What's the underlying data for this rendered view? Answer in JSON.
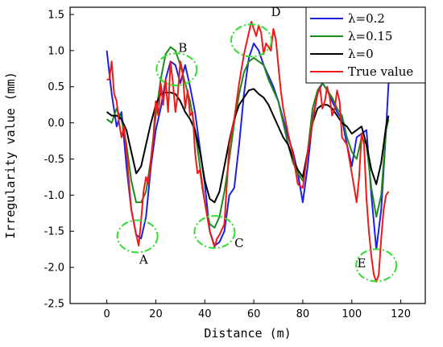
{
  "chart_data": {
    "type": "line",
    "xlabel": "Distance (m)",
    "ylabel": "Irregularity value (mm)",
    "xlim": [
      -15,
      130
    ],
    "ylim": [
      -2.5,
      1.6
    ],
    "xticks": [
      "0",
      "20",
      "40",
      "60",
      "80",
      "100",
      "120"
    ],
    "yticks": [
      "-2.5",
      "-2.0",
      "-1.5",
      "-1.0",
      "-0.5",
      "0.0",
      "0.5",
      "1.0",
      "1.5"
    ],
    "legend_position": "top-right",
    "series": [
      {
        "name": "λ=0.2",
        "color": "#1f1fe0",
        "points": [
          [
            0,
            1.0
          ],
          [
            2,
            0.4
          ],
          [
            4,
            -0.05
          ],
          [
            6,
            0.15
          ],
          [
            8,
            -0.6
          ],
          [
            10,
            -1.2
          ],
          [
            12,
            -1.55
          ],
          [
            14,
            -1.6
          ],
          [
            16,
            -1.3
          ],
          [
            18,
            -0.6
          ],
          [
            20,
            -0.1
          ],
          [
            22,
            0.2
          ],
          [
            24,
            0.6
          ],
          [
            26,
            0.85
          ],
          [
            28,
            0.8
          ],
          [
            30,
            0.55
          ],
          [
            32,
            0.8
          ],
          [
            34,
            0.5
          ],
          [
            36,
            0.15
          ],
          [
            38,
            -0.35
          ],
          [
            40,
            -0.85
          ],
          [
            42,
            -1.5
          ],
          [
            44,
            -1.7
          ],
          [
            46,
            -1.65
          ],
          [
            48,
            -1.5
          ],
          [
            50,
            -1.0
          ],
          [
            52,
            -0.9
          ],
          [
            54,
            -0.3
          ],
          [
            56,
            0.4
          ],
          [
            58,
            0.9
          ],
          [
            60,
            1.1
          ],
          [
            62,
            1.0
          ],
          [
            64,
            0.8
          ],
          [
            66,
            0.65
          ],
          [
            68,
            0.5
          ],
          [
            70,
            0.3
          ],
          [
            72,
            0.05
          ],
          [
            74,
            -0.2
          ],
          [
            76,
            -0.4
          ],
          [
            78,
            -0.7
          ],
          [
            80,
            -1.1
          ],
          [
            82,
            -0.6
          ],
          [
            84,
            0.05
          ],
          [
            86,
            0.4
          ],
          [
            88,
            0.55
          ],
          [
            90,
            0.45
          ],
          [
            92,
            0.3
          ],
          [
            94,
            0.15
          ],
          [
            96,
            0.05
          ],
          [
            98,
            -0.3
          ],
          [
            100,
            -0.6
          ],
          [
            102,
            -0.2
          ],
          [
            104,
            -0.15
          ],
          [
            106,
            -0.1
          ],
          [
            108,
            -1.0
          ],
          [
            110,
            -1.75
          ],
          [
            112,
            -1.2
          ],
          [
            114,
            -0.1
          ],
          [
            115,
            0.55
          ]
        ]
      },
      {
        "name": "λ=0.15",
        "color": "#1e8a1e",
        "points": [
          [
            0,
            0.05
          ],
          [
            2,
            0.0
          ],
          [
            4,
            0.2
          ],
          [
            6,
            0.05
          ],
          [
            8,
            -0.3
          ],
          [
            10,
            -0.8
          ],
          [
            12,
            -1.1
          ],
          [
            14,
            -1.1
          ],
          [
            16,
            -0.95
          ],
          [
            18,
            -0.5
          ],
          [
            20,
            0.1
          ],
          [
            22,
            0.6
          ],
          [
            24,
            0.95
          ],
          [
            26,
            1.05
          ],
          [
            28,
            1.0
          ],
          [
            30,
            0.8
          ],
          [
            32,
            0.55
          ],
          [
            34,
            0.3
          ],
          [
            36,
            -0.1
          ],
          [
            38,
            -0.6
          ],
          [
            40,
            -1.1
          ],
          [
            42,
            -1.4
          ],
          [
            44,
            -1.45
          ],
          [
            46,
            -1.3
          ],
          [
            48,
            -0.95
          ],
          [
            50,
            -0.5
          ],
          [
            52,
            0.0
          ],
          [
            54,
            0.4
          ],
          [
            56,
            0.7
          ],
          [
            58,
            0.85
          ],
          [
            60,
            0.9
          ],
          [
            62,
            0.85
          ],
          [
            64,
            0.8
          ],
          [
            66,
            0.6
          ],
          [
            68,
            0.45
          ],
          [
            70,
            0.3
          ],
          [
            72,
            0.0
          ],
          [
            74,
            -0.3
          ],
          [
            76,
            -0.55
          ],
          [
            78,
            -0.7
          ],
          [
            80,
            -0.8
          ],
          [
            82,
            -0.4
          ],
          [
            84,
            0.2
          ],
          [
            86,
            0.45
          ],
          [
            88,
            0.55
          ],
          [
            90,
            0.45
          ],
          [
            92,
            0.35
          ],
          [
            94,
            0.2
          ],
          [
            96,
            0.1
          ],
          [
            98,
            -0.2
          ],
          [
            100,
            -0.4
          ],
          [
            102,
            -0.5
          ],
          [
            104,
            -0.2
          ],
          [
            106,
            -0.3
          ],
          [
            108,
            -0.9
          ],
          [
            110,
            -1.3
          ],
          [
            112,
            -1.0
          ],
          [
            114,
            -0.1
          ],
          [
            115,
            0.05
          ]
        ]
      },
      {
        "name": "λ=0",
        "color": "#000000",
        "points": [
          [
            0,
            0.15
          ],
          [
            2,
            0.1
          ],
          [
            4,
            0.1
          ],
          [
            6,
            0.05
          ],
          [
            8,
            -0.1
          ],
          [
            10,
            -0.4
          ],
          [
            12,
            -0.7
          ],
          [
            14,
            -0.6
          ],
          [
            16,
            -0.3
          ],
          [
            18,
            0.0
          ],
          [
            20,
            0.25
          ],
          [
            22,
            0.4
          ],
          [
            24,
            0.42
          ],
          [
            26,
            0.42
          ],
          [
            28,
            0.4
          ],
          [
            30,
            0.3
          ],
          [
            32,
            0.15
          ],
          [
            34,
            0.05
          ],
          [
            36,
            -0.1
          ],
          [
            38,
            -0.4
          ],
          [
            40,
            -0.8
          ],
          [
            42,
            -1.05
          ],
          [
            44,
            -1.1
          ],
          [
            46,
            -0.95
          ],
          [
            48,
            -0.6
          ],
          [
            50,
            -0.25
          ],
          [
            52,
            0.05
          ],
          [
            54,
            0.25
          ],
          [
            56,
            0.35
          ],
          [
            58,
            0.45
          ],
          [
            60,
            0.47
          ],
          [
            62,
            0.4
          ],
          [
            64,
            0.35
          ],
          [
            66,
            0.25
          ],
          [
            68,
            0.1
          ],
          [
            70,
            -0.05
          ],
          [
            72,
            -0.2
          ],
          [
            74,
            -0.3
          ],
          [
            76,
            -0.5
          ],
          [
            78,
            -0.65
          ],
          [
            80,
            -0.75
          ],
          [
            82,
            -0.4
          ],
          [
            84,
            0.0
          ],
          [
            86,
            0.2
          ],
          [
            88,
            0.25
          ],
          [
            90,
            0.25
          ],
          [
            92,
            0.2
          ],
          [
            94,
            0.1
          ],
          [
            96,
            0.0
          ],
          [
            98,
            -0.05
          ],
          [
            100,
            -0.15
          ],
          [
            102,
            -0.1
          ],
          [
            104,
            -0.05
          ],
          [
            106,
            -0.3
          ],
          [
            108,
            -0.65
          ],
          [
            110,
            -0.85
          ],
          [
            112,
            -0.55
          ],
          [
            114,
            -0.05
          ],
          [
            115,
            0.1
          ]
        ]
      },
      {
        "name": "True value",
        "color": "#ee1a1a",
        "points": [
          [
            0,
            0.6
          ],
          [
            1,
            0.6
          ],
          [
            2,
            0.85
          ],
          [
            3,
            0.4
          ],
          [
            4,
            0.3
          ],
          [
            5,
            0.0
          ],
          [
            6,
            -0.2
          ],
          [
            7,
            -0.05
          ],
          [
            8,
            -0.4
          ],
          [
            10,
            -1.2
          ],
          [
            12,
            -1.55
          ],
          [
            13,
            -1.7
          ],
          [
            14,
            -1.35
          ],
          [
            15,
            -0.95
          ],
          [
            16,
            -0.75
          ],
          [
            17,
            -0.85
          ],
          [
            18,
            -0.5
          ],
          [
            19,
            -0.2
          ],
          [
            20,
            0.3
          ],
          [
            21,
            0.1
          ],
          [
            22,
            0.55
          ],
          [
            23,
            0.25
          ],
          [
            24,
            0.6
          ],
          [
            25,
            0.15
          ],
          [
            26,
            0.85
          ],
          [
            27,
            0.55
          ],
          [
            28,
            0.15
          ],
          [
            29,
            0.4
          ],
          [
            30,
            0.85
          ],
          [
            31,
            0.7
          ],
          [
            32,
            0.2
          ],
          [
            33,
            0.45
          ],
          [
            34,
            0.1
          ],
          [
            35,
            0.15
          ],
          [
            36,
            -0.4
          ],
          [
            37,
            -0.7
          ],
          [
            38,
            -0.65
          ],
          [
            39,
            -0.9
          ],
          [
            40,
            -1.1
          ],
          [
            42,
            -1.5
          ],
          [
            44,
            -1.72
          ],
          [
            45,
            -1.6
          ],
          [
            46,
            -1.55
          ],
          [
            48,
            -1.4
          ],
          [
            50,
            -0.3
          ],
          [
            52,
            0.05
          ],
          [
            54,
            0.55
          ],
          [
            56,
            0.95
          ],
          [
            58,
            1.25
          ],
          [
            59,
            1.4
          ],
          [
            60,
            1.3
          ],
          [
            61,
            1.2
          ],
          [
            62,
            1.35
          ],
          [
            63,
            1.25
          ],
          [
            64,
            0.95
          ],
          [
            65,
            1.1
          ],
          [
            66,
            1.05
          ],
          [
            67,
            1.0
          ],
          [
            68,
            1.3
          ],
          [
            69,
            1.15
          ],
          [
            70,
            0.8
          ],
          [
            71,
            0.45
          ],
          [
            72,
            0.2
          ],
          [
            74,
            -0.15
          ],
          [
            76,
            -0.45
          ],
          [
            78,
            -0.85
          ],
          [
            80,
            -0.9
          ],
          [
            82,
            -0.4
          ],
          [
            84,
            0.0
          ],
          [
            86,
            0.4
          ],
          [
            87,
            0.5
          ],
          [
            88,
            0.2
          ],
          [
            89,
            0.3
          ],
          [
            90,
            0.5
          ],
          [
            91,
            0.35
          ],
          [
            92,
            0.1
          ],
          [
            93,
            0.2
          ],
          [
            94,
            0.45
          ],
          [
            95,
            0.3
          ],
          [
            96,
            -0.2
          ],
          [
            98,
            -0.3
          ],
          [
            99,
            -0.5
          ],
          [
            100,
            -0.7
          ],
          [
            101,
            -0.9
          ],
          [
            102,
            -1.1
          ],
          [
            103,
            -0.75
          ],
          [
            104,
            -0.15
          ],
          [
            105,
            -0.3
          ],
          [
            106,
            -1.05
          ],
          [
            107,
            -1.5
          ],
          [
            108,
            -1.85
          ],
          [
            109,
            -2.1
          ],
          [
            110,
            -2.2
          ],
          [
            111,
            -2.1
          ],
          [
            112,
            -1.6
          ],
          [
            113,
            -1.2
          ],
          [
            114,
            -1.0
          ],
          [
            115,
            -0.95
          ]
        ]
      }
    ],
    "annotations": [
      {
        "label": "A",
        "x": 15,
        "y": -1.95
      },
      {
        "label": "B",
        "x": 31,
        "y": 0.98
      },
      {
        "label": "C",
        "x": 54,
        "y": -1.72
      },
      {
        "label": "D",
        "x": 69,
        "y": 1.48
      },
      {
        "label": "E",
        "x": 104,
        "y": -2.0
      }
    ],
    "highlight_ellipses": [
      {
        "x": 12.5,
        "y": -1.57
      },
      {
        "x": 28.5,
        "y": 0.74
      },
      {
        "x": 44,
        "y": -1.51
      },
      {
        "x": 59,
        "y": 1.14
      },
      {
        "x": 110,
        "y": -1.97
      }
    ]
  },
  "colors": {
    "highlight": "#33dd33",
    "axis": "#000000"
  }
}
